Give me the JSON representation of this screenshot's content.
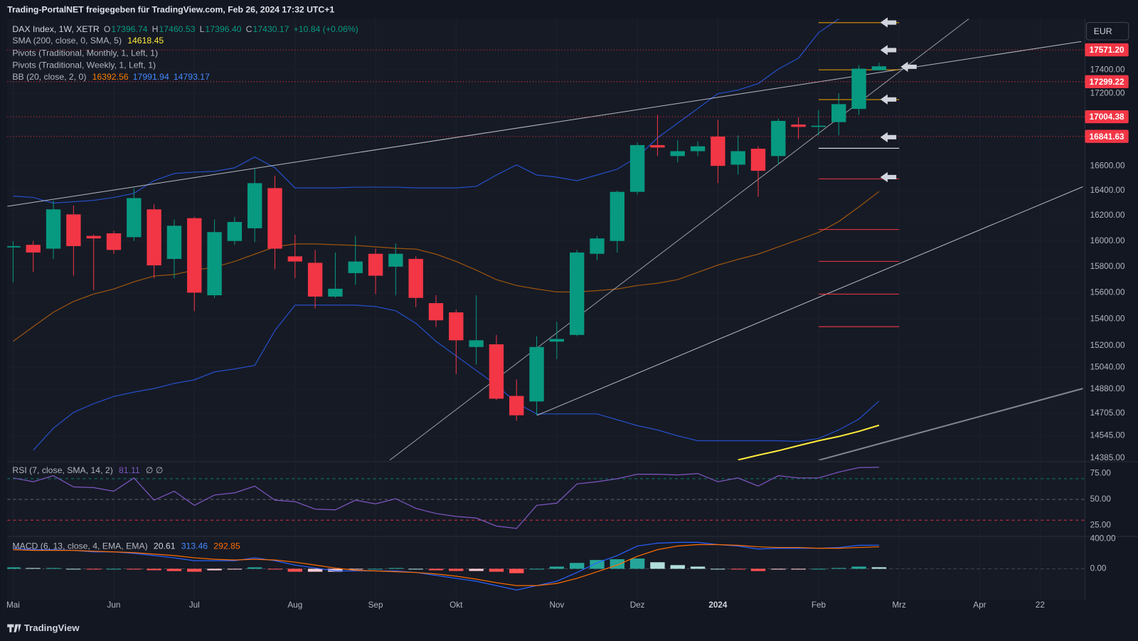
{
  "header": "Trading-PortalNET freigegeben für TradingView.com, Feb 26, 2024 17:32 UTC+1",
  "footer": "TradingView",
  "chart_data": [
    {
      "type": "candlestick",
      "symbol": "DAX Index, 1W, XETR",
      "currency": "EUR",
      "ohlc_labels": [
        "O",
        "H",
        "L",
        "C"
      ],
      "legend_values": [
        "17396.74",
        "17460.53",
        "17396.40",
        "17430.17"
      ],
      "change": "+10.84 (+0.06%)",
      "up_color": "#089981",
      "down_color": "#f23645",
      "log_scale": true,
      "xlim": [
        -0.29,
        53.23
      ],
      "ylim": [
        14370,
        17840
      ],
      "grid": true,
      "xticks": [
        {
          "value": 0,
          "label": "Mai"
        },
        {
          "value": 5,
          "label": "Jun"
        },
        {
          "value": 9,
          "label": "Jul"
        },
        {
          "value": 14,
          "label": "Aug"
        },
        {
          "value": 18,
          "label": "Sep"
        },
        {
          "value": 22,
          "label": "Okt"
        },
        {
          "value": 27,
          "label": "Nov"
        },
        {
          "value": 31,
          "label": "Dez"
        },
        {
          "value": 35,
          "label": "2024"
        },
        {
          "value": 40,
          "label": "Feb"
        },
        {
          "value": 44,
          "label": "Mrz"
        },
        {
          "value": 48,
          "label": "Apr"
        },
        {
          "value": 51,
          "label": "22"
        }
      ],
      "yticks": [
        {
          "value": 17400,
          "label": "17400.00"
        },
        {
          "value": 17200,
          "label": "17200.00"
        },
        {
          "value": 16600,
          "label": "16600.00"
        },
        {
          "value": 16400,
          "label": "16400.00"
        },
        {
          "value": 16200,
          "label": "16200.00"
        },
        {
          "value": 16000,
          "label": "16000.00"
        },
        {
          "value": 15800,
          "label": "15800.00"
        },
        {
          "value": 15600,
          "label": "15600.00"
        },
        {
          "value": 15400,
          "label": "15400.00"
        },
        {
          "value": 15200,
          "label": "15200.00"
        },
        {
          "value": 15040,
          "label": "15040.00"
        },
        {
          "value": 14880,
          "label": "14880.00"
        },
        {
          "value": 14705,
          "label": "14705.00"
        },
        {
          "value": 14545,
          "label": "14545.00"
        },
        {
          "value": 14385,
          "label": "14385.00"
        }
      ],
      "open": [
        15950,
        15970,
        15940,
        16210,
        16040,
        16060,
        16030,
        16250,
        15860,
        16180,
        15580,
        16000,
        16100,
        16420,
        15880,
        15830,
        15570,
        15750,
        15900,
        15800,
        15860,
        15520,
        15450,
        15190,
        15210,
        14830,
        14790,
        15230,
        15280,
        15900,
        16000,
        16390,
        16770,
        16680,
        16720,
        16840,
        16610,
        16740,
        16680,
        16940,
        16920,
        16960,
        17070,
        17396.74
      ],
      "high": [
        16000,
        16000,
        16320,
        16280,
        16050,
        16080,
        16420,
        16290,
        16170,
        16190,
        16170,
        16190,
        16580,
        16520,
        16050,
        15930,
        15910,
        16040,
        15940,
        15980,
        15880,
        15580,
        15470,
        15580,
        15280,
        14950,
        15270,
        15380,
        15930,
        16040,
        16400,
        16790,
        17020,
        16810,
        16800,
        16980,
        16850,
        16760,
        16990,
        17000,
        17060,
        17200,
        17440,
        17460.53
      ],
      "low": [
        15680,
        15760,
        15860,
        15730,
        15620,
        15900,
        16000,
        15710,
        15710,
        15460,
        15560,
        15970,
        15990,
        15780,
        15710,
        15480,
        15560,
        15660,
        15590,
        15580,
        15490,
        15340,
        14990,
        15060,
        14800,
        14650,
        14690,
        15100,
        15270,
        15850,
        15910,
        16370,
        16680,
        16630,
        16680,
        16460,
        16530,
        16350,
        16610,
        16820,
        16850,
        16850,
        17020,
        17396.4
      ],
      "close": [
        15960,
        15910,
        16250,
        15960,
        16020,
        15930,
        16340,
        15810,
        16120,
        15600,
        16070,
        16150,
        16460,
        15940,
        15840,
        15570,
        15630,
        15840,
        15730,
        15900,
        15560,
        15390,
        15240,
        15240,
        14810,
        14690,
        15190,
        15250,
        15910,
        16020,
        16390,
        16770,
        16750,
        16720,
        16760,
        16600,
        16720,
        16560,
        16970,
        16920,
        16930,
        17110,
        17410,
        17430.17
      ],
      "sma": {
        "name": "SMA (200, close, 0, SMA, 5)",
        "color": "#ffeb3b",
        "values": [
          null,
          null,
          null,
          null,
          null,
          null,
          null,
          null,
          null,
          null,
          null,
          null,
          null,
          null,
          null,
          null,
          null,
          null,
          null,
          null,
          null,
          null,
          null,
          null,
          null,
          null,
          null,
          null,
          null,
          null,
          null,
          null,
          null,
          null,
          null,
          null,
          14372,
          14406,
          14437,
          14473,
          14508,
          14538,
          14575,
          14618.45
        ]
      },
      "pivots": [
        {
          "name": "Pivots (Traditional, Monthly, 1, Left, 1)",
          "x": [
            40,
            44
          ],
          "levels": [
            17807,
            17400,
            17148,
            16744,
            16495,
            16090,
            15841,
            15589,
            15342
          ],
          "colors": [
            "#f7a600",
            "#f7a600",
            "#f7a600",
            "#ffffff",
            "#f23645",
            "#f23645",
            "#f23645",
            "#f23645",
            "#f23645"
          ]
        },
        {
          "name": "Pivots (Traditional, Weekly, 1, Left, 1)"
        }
      ],
      "bollinger": {
        "name": "BB (20, close, 2, 0)",
        "basis": {
          "color": "#f57c00",
          "values": [
            15232,
            15342,
            15451,
            15533,
            15589,
            15628,
            15683,
            15728,
            15739,
            15773,
            15795,
            15841,
            15897,
            15954,
            15977,
            15977,
            15971,
            15966,
            15954,
            15943,
            15937,
            15897,
            15841,
            15773,
            15700,
            15655,
            15628,
            15605,
            15605,
            15616,
            15628,
            15655,
            15672,
            15700,
            15756,
            15812,
            15857,
            15897,
            15954,
            16010,
            16067,
            16153,
            16269,
            16392.56
          ]
        },
        "upper": {
          "color": "#2962ff",
          "values": [
            16356,
            16345,
            16300,
            16311,
            16322,
            16345,
            16378,
            16480,
            16538,
            16549,
            16555,
            16584,
            16673,
            16584,
            16422,
            16422,
            16422,
            16428,
            16428,
            16428,
            16422,
            16422,
            16422,
            16434,
            16526,
            16608,
            16526,
            16509,
            16480,
            16526,
            16573,
            16673,
            16829,
            16951,
            17074,
            17198,
            17229,
            17283,
            17406,
            17500,
            17720,
            17840,
            17930,
            17991.94
          ]
        },
        "lower": {
          "color": "#2962ff",
          "values": [
            null,
            14440,
            14597,
            14711,
            14774,
            14826,
            14858,
            14884,
            14921,
            14948,
            15006,
            15027,
            15054,
            15313,
            15505,
            15505,
            15505,
            15505,
            15494,
            15462,
            15368,
            15232,
            15124,
            15016,
            14910,
            14778,
            14700,
            14700,
            14700,
            14700,
            14658,
            14616,
            14585,
            14543,
            14508,
            14508,
            14508,
            14508,
            14508,
            14503,
            14524,
            14585,
            14663,
            14793.17
          ]
        }
      },
      "price_lines": [
        {
          "value": 17571.2,
          "label": "17571.20"
        },
        {
          "value": 17299.22,
          "label": "17299.22"
        },
        {
          "value": 17004.38,
          "label": "17004.38"
        },
        {
          "value": 16841.63,
          "label": "16841.63"
        }
      ],
      "price_line_color": "#f23645",
      "trendlines": [
        {
          "color": "#d1d4dc",
          "x": [
            -0.29,
            53.05
          ],
          "values": [
            16274,
            17643
          ]
        },
        {
          "color": "#b2b5be",
          "x": [
            18.7,
            47.46
          ],
          "values": [
            14370,
            17840
          ]
        },
        {
          "color": "#d1d4dc",
          "x": [
            26.02,
            53.12
          ],
          "values": [
            14690,
            16431
          ]
        },
        {
          "color": "#9598a1",
          "x": [
            40.0,
            53.12
          ],
          "values": [
            14370,
            14884
          ]
        }
      ]
    },
    {
      "type": "line",
      "name": "RSI (7, close, SMA, 14, 2)",
      "na_labels": "∅ ∅",
      "color": "#7e57c2",
      "ylim": [
        15,
        85
      ],
      "yticks": [
        {
          "value": 75,
          "label": "75.00"
        },
        {
          "value": 50,
          "label": "50.00"
        },
        {
          "value": 25,
          "label": "25.00"
        }
      ],
      "bands": [
        70,
        50,
        30
      ],
      "band_colors": [
        "#089981",
        "#787b86",
        "#f23645"
      ],
      "values": [
        70.7,
        67.1,
        72.9,
        62.1,
        61.4,
        57.9,
        70.7,
        49.3,
        57.9,
        44.3,
        54.3,
        56.4,
        62.9,
        49.3,
        47.9,
        40.7,
        40.0,
        49.3,
        45.7,
        50.7,
        41.4,
        36.4,
        33.6,
        32.1,
        24.3,
        22.1,
        44.3,
        46.4,
        65.0,
        67.1,
        70.0,
        74.3,
        74.3,
        73.6,
        75.0,
        67.1,
        70.7,
        62.9,
        72.9,
        70.7,
        70.7,
        76.4,
        80.7,
        81.11
      ]
    },
    {
      "type": "macd",
      "name": "MACD (6, 13, close, 4, EMA, EMA)",
      "ylim": [
        -410,
        420
      ],
      "yticks": [
        {
          "value": 400,
          "label": "400.00"
        },
        {
          "value": 0,
          "label": "0.00"
        }
      ],
      "histogram": {
        "colors": [
          "#26a69a",
          "#b2dfdb",
          "#ffcdd2",
          "#ff5252"
        ],
        "values": [
          19,
          10,
          10,
          0,
          -10,
          0,
          -10,
          -19,
          -30,
          -39,
          -20,
          -10,
          19,
          -10,
          -39,
          -39,
          -39,
          -9,
          0,
          10,
          0,
          -20,
          -29,
          -29,
          -39,
          -59,
          0,
          29,
          78,
          117,
          127,
          136,
          87,
          49,
          29,
          0,
          -10,
          -30,
          -10,
          -10,
          0,
          10,
          29,
          20.61
        ]
      },
      "macd": {
        "color": "#2962ff",
        "values": [
          273,
          254,
          254,
          244,
          224,
          224,
          205,
          176,
          146,
          107,
          107,
          107,
          146,
          107,
          49,
          10,
          -29,
          -29,
          -29,
          -29,
          -49,
          -88,
          -127,
          -166,
          -224,
          -283,
          -224,
          -166,
          -49,
          78,
          176,
          302,
          341,
          351,
          351,
          322,
          302,
          263,
          273,
          273,
          273,
          283,
          312,
          313.46
        ]
      },
      "signal": {
        "color": "#ff6d00",
        "values": [
          254,
          244,
          244,
          244,
          234,
          224,
          215,
          195,
          176,
          146,
          127,
          117,
          127,
          117,
          88,
          49,
          10,
          -20,
          -29,
          -39,
          -49,
          -68,
          -98,
          -137,
          -185,
          -224,
          -224,
          -195,
          -127,
          -39,
          49,
          166,
          254,
          302,
          322,
          322,
          312,
          293,
          283,
          283,
          273,
          273,
          283,
          292.85
        ]
      }
    }
  ]
}
